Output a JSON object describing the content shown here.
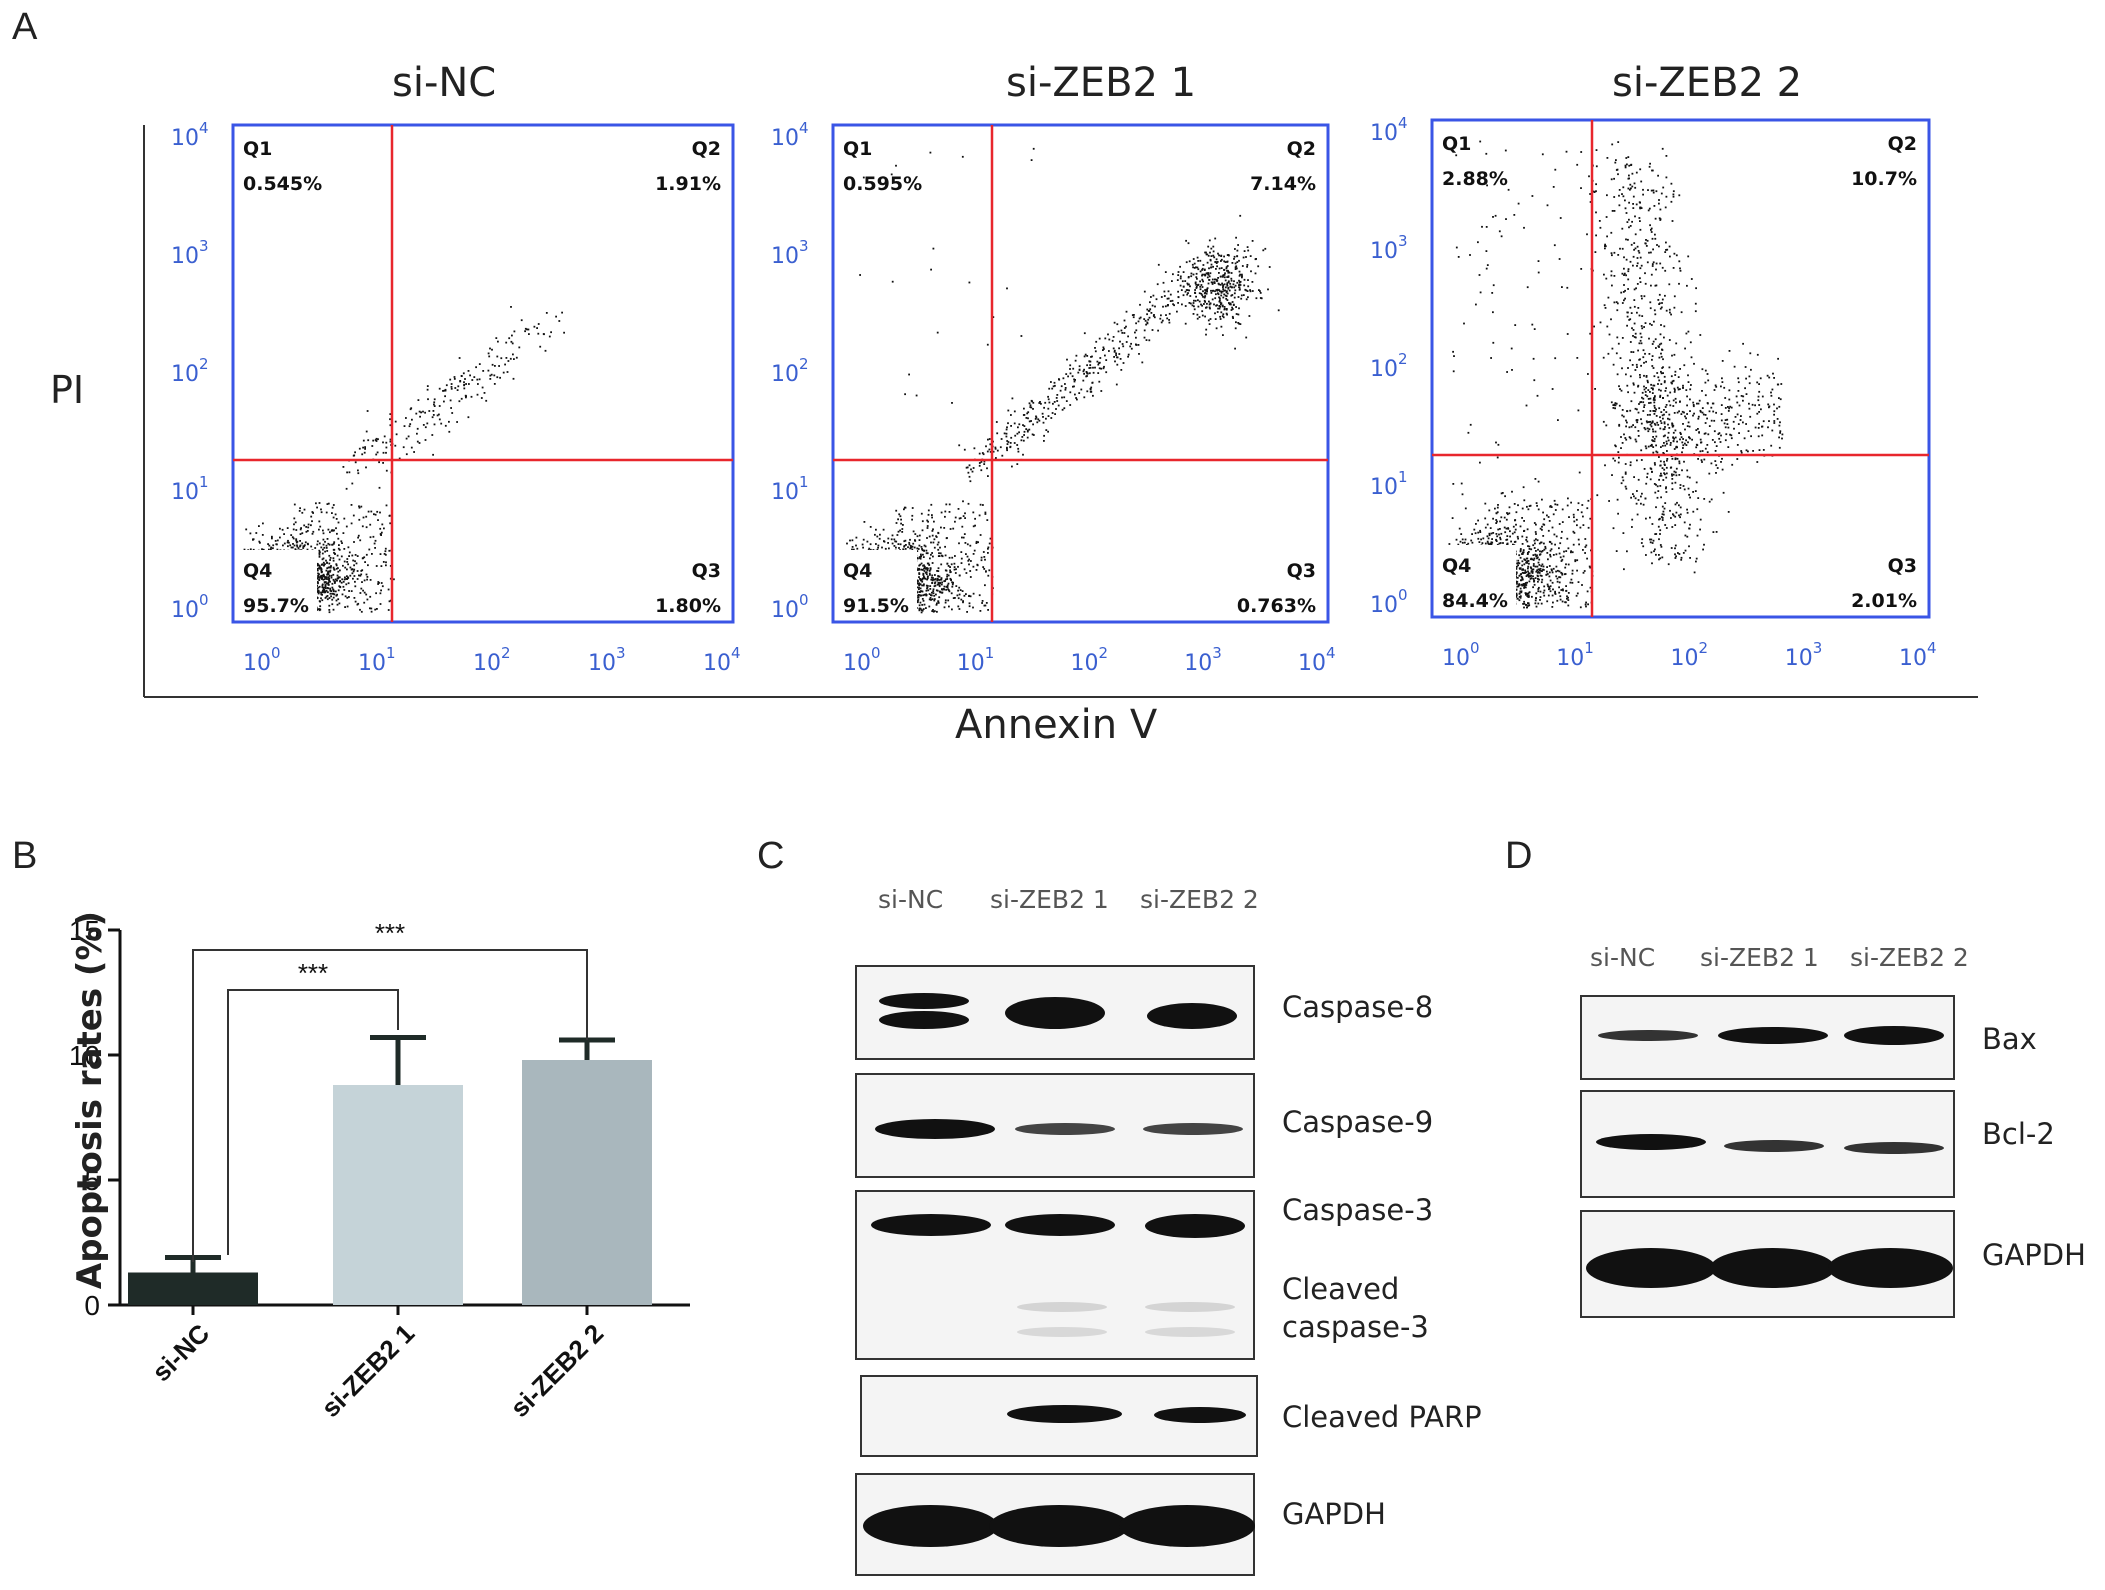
{
  "panel_letters": {
    "a": "A",
    "b": "B",
    "c": "C",
    "d": "D"
  },
  "flow": {
    "y_label": "PI",
    "x_label": "Annexin V",
    "plots": [
      {
        "title": "si-NC",
        "q1_label": "Q1",
        "q1": "0.545%",
        "q2_label": "Q2",
        "q2": "1.91%",
        "q3_label": "Q3",
        "q3": "1.80%",
        "q4_label": "Q4",
        "q4": "95.7%"
      },
      {
        "title": "si-ZEB2 1",
        "q1_label": "Q1",
        "q1": "0.595%",
        "q2_label": "Q2",
        "q2": "7.14%",
        "q3_label": "Q3",
        "q3": "0.763%",
        "q4_label": "Q4",
        "q4": "91.5%"
      },
      {
        "title": "si-ZEB2 2",
        "q1_label": "Q1",
        "q1": "2.88%",
        "q2_label": "Q2",
        "q2": "10.7%",
        "q3_label": "Q3",
        "q3": "2.01%",
        "q4_label": "Q4",
        "q4": "84.4%"
      }
    ],
    "tick_base": "10",
    "tick_exponents": [
      "0",
      "1",
      "2",
      "3",
      "4"
    ],
    "colors": {
      "box": "#3a55e6",
      "gate": "#e8262c",
      "ticks": "#3a5fd0",
      "dots": "#111111"
    }
  },
  "chart_data": {
    "type": "bar",
    "categories": [
      "si-NC",
      "si-ZEB2 1",
      "si-ZEB2 2"
    ],
    "values": [
      1.3,
      8.8,
      9.8
    ],
    "errors": [
      0.6,
      1.9,
      0.8
    ],
    "ylabel": "Apoptosis rates (%)",
    "ylim": [
      0,
      15
    ],
    "yticks": [
      "0",
      "5",
      "10",
      "15"
    ],
    "significance": [
      {
        "from": "si-NC",
        "to": "si-ZEB2 1",
        "label": "***"
      },
      {
        "from": "si-NC",
        "to": "si-ZEB2 2",
        "label": "***"
      }
    ],
    "colors": [
      "#1f2b28",
      "#c5d3d8",
      "#a9b7bd"
    ]
  },
  "blot_c": {
    "lanes": [
      "si-NC",
      "si-ZEB2 1",
      "si-ZEB2 2"
    ],
    "labels": {
      "caspase8": "Caspase-8",
      "caspase9": "Caspase-9",
      "caspase3": "Caspase-3",
      "cleaved3_line1": "Cleaved",
      "cleaved3_line2": "caspase-3",
      "parp": "Cleaved PARP",
      "gapdh": "GAPDH"
    }
  },
  "blot_d": {
    "lanes": [
      "si-NC",
      "si-ZEB2 1",
      "si-ZEB2 2"
    ],
    "labels": {
      "bax": "Bax",
      "bcl2": "Bcl-2",
      "gapdh": "GAPDH"
    }
  }
}
